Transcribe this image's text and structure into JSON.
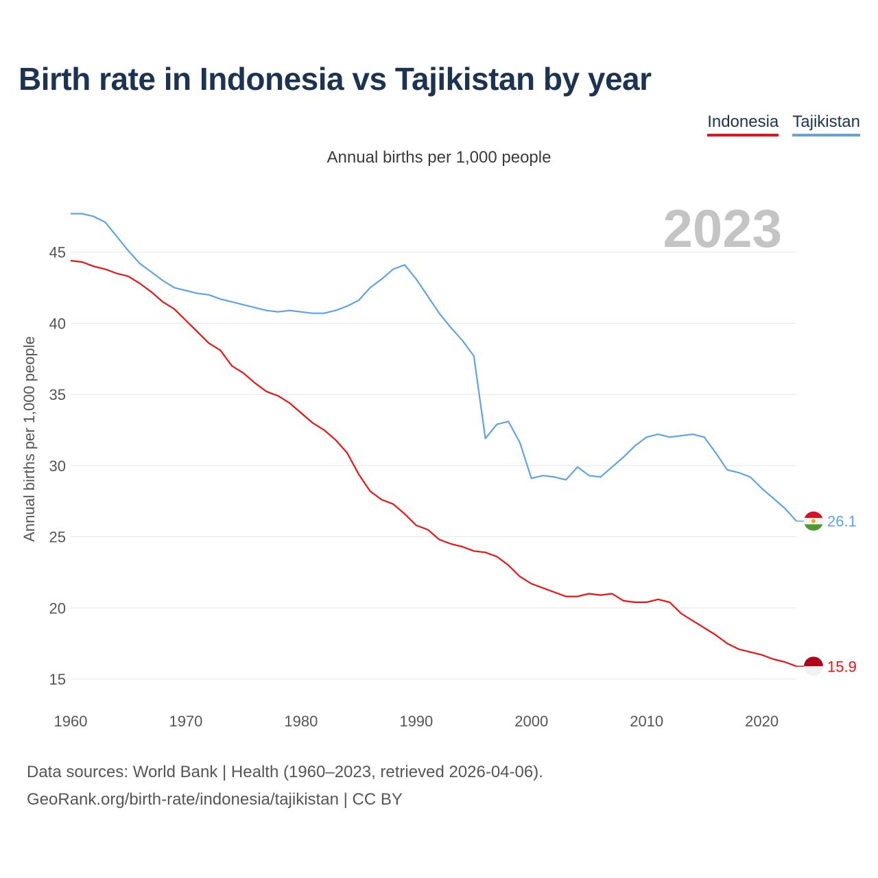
{
  "title": "Birth rate in Indonesia vs Tajikistan by year",
  "subtitle": "Annual births per 1,000 people",
  "source_line1": "Data sources: World Bank | Health (1960–2023, retrieved 2026-04-06).",
  "source_line2": "GeoRank.org/birth-rate/indonesia/tajikistan | CC BY",
  "chart_data": {
    "type": "line",
    "title": "Birth rate in Indonesia vs Tajikistan by year",
    "subtitle": "Annual births per 1,000 people",
    "xlabel": "",
    "ylabel": "Annual births per 1,000 people",
    "xlim": [
      1960,
      2023
    ],
    "ylim": [
      15,
      48
    ],
    "yticks": [
      15,
      20,
      25,
      30,
      35,
      40,
      45
    ],
    "xticks": [
      1960,
      1970,
      1980,
      1990,
      2000,
      2010,
      2020
    ],
    "year_label": "2023",
    "legend_position": "top-right",
    "series": [
      {
        "name": "Indonesia",
        "color": "#ee1111",
        "end_label": "15.9",
        "flag_icon": "indonesia-flag-icon",
        "x": [
          1960,
          1961,
          1962,
          1963,
          1964,
          1965,
          1966,
          1967,
          1968,
          1969,
          1970,
          1971,
          1972,
          1973,
          1974,
          1975,
          1976,
          1977,
          1978,
          1979,
          1980,
          1981,
          1982,
          1983,
          1984,
          1985,
          1986,
          1987,
          1988,
          1989,
          1990,
          1991,
          1992,
          1993,
          1994,
          1995,
          1996,
          1997,
          1998,
          1999,
          2000,
          2001,
          2002,
          2003,
          2004,
          2005,
          2006,
          2007,
          2008,
          2009,
          2010,
          2011,
          2012,
          2013,
          2014,
          2015,
          2016,
          2017,
          2018,
          2019,
          2020,
          2021,
          2022,
          2023
        ],
        "values": [
          44.4,
          44.3,
          44.0,
          43.8,
          43.5,
          43.3,
          42.8,
          42.2,
          41.5,
          41.0,
          40.2,
          39.4,
          38.6,
          38.1,
          37.0,
          36.5,
          35.8,
          35.2,
          34.9,
          34.4,
          33.7,
          33.0,
          32.5,
          31.8,
          30.9,
          29.4,
          28.2,
          27.6,
          27.3,
          26.6,
          25.8,
          25.5,
          24.8,
          24.5,
          24.3,
          24.0,
          23.9,
          23.6,
          23.0,
          22.2,
          21.7,
          21.4,
          21.1,
          20.8,
          20.8,
          21.0,
          20.9,
          21.0,
          20.5,
          20.4,
          20.4,
          20.6,
          20.4,
          19.6,
          19.1,
          18.6,
          18.1,
          17.5,
          17.1,
          16.9,
          16.7,
          16.4,
          16.2,
          15.9
        ]
      },
      {
        "name": "Tajikistan",
        "color": "#5da3e6",
        "end_label": "26.1",
        "flag_icon": "tajikistan-flag-icon",
        "x": [
          1960,
          1961,
          1962,
          1963,
          1964,
          1965,
          1966,
          1967,
          1968,
          1969,
          1970,
          1971,
          1972,
          1973,
          1974,
          1975,
          1976,
          1977,
          1978,
          1979,
          1980,
          1981,
          1982,
          1983,
          1984,
          1985,
          1986,
          1987,
          1988,
          1989,
          1990,
          1991,
          1992,
          1993,
          1994,
          1995,
          1996,
          1997,
          1998,
          1999,
          2000,
          2001,
          2002,
          2003,
          2004,
          2005,
          2006,
          2007,
          2008,
          2009,
          2010,
          2011,
          2012,
          2013,
          2014,
          2015,
          2016,
          2017,
          2018,
          2019,
          2020,
          2021,
          2022,
          2023
        ],
        "values": [
          47.7,
          47.7,
          47.5,
          47.1,
          46.1,
          45.1,
          44.2,
          43.6,
          43.0,
          42.5,
          42.3,
          42.1,
          42.0,
          41.7,
          41.5,
          41.3,
          41.1,
          40.9,
          40.8,
          40.9,
          40.8,
          40.7,
          40.7,
          40.9,
          41.2,
          41.6,
          42.5,
          43.1,
          43.8,
          44.1,
          43.1,
          41.9,
          40.7,
          39.7,
          38.8,
          37.7,
          31.9,
          32.9,
          33.1,
          31.6,
          29.1,
          29.3,
          29.2,
          29.0,
          29.9,
          29.3,
          29.2,
          29.9,
          30.6,
          31.4,
          32.0,
          32.2,
          32.0,
          32.1,
          32.2,
          32.0,
          30.9,
          29.7,
          29.5,
          29.2,
          28.4,
          27.7,
          27.0,
          26.1
        ]
      }
    ]
  }
}
